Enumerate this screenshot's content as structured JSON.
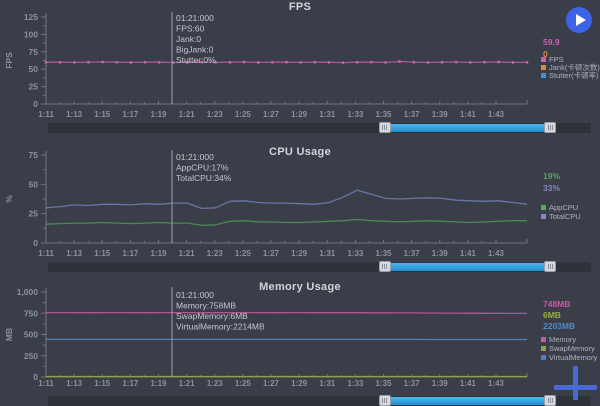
{
  "app": {
    "background": "#3a3e48",
    "axis_color": "#6e7480",
    "label_color": "#8b919d",
    "tooltip_color": "#c2c7cf",
    "legend_text_color": "#aeb3bd"
  },
  "buttons": {
    "play": {
      "icon": "play-icon",
      "color": "#3c63e8",
      "glyph_color": "#ffffff"
    },
    "add": {
      "icon": "plus-icon",
      "color": "#4b69d4"
    }
  },
  "chart_data": [
    {
      "type": "line",
      "title": "FPS",
      "ylabel": "FPS",
      "ylim": [
        0,
        125
      ],
      "ytick_values": [
        0,
        25,
        50,
        75,
        100,
        125
      ],
      "ytick_labels": [
        "0",
        "25",
        "50",
        "75",
        "100",
        "125"
      ],
      "xticks": [
        "1:11",
        "1:13",
        "1:15",
        "1:17",
        "1:19",
        "1:21",
        "1:23",
        "1:25",
        "1:27",
        "1:29",
        "1:31",
        "1:33",
        "1:35",
        "1:37",
        "1:39",
        "1:41",
        "1:43"
      ],
      "grid": false,
      "legend_position": "right",
      "cursor": {
        "fraction": 0.262,
        "lines": [
          "01:21:000",
          "FPS:60",
          "Jank:0",
          "BigJank:0",
          "Stutter:0%"
        ]
      },
      "current_values": [
        {
          "text": "59.9",
          "color": "#c564ae"
        },
        {
          "text": "0",
          "color": "#d9883f"
        }
      ],
      "legend": [
        {
          "label": "FPS",
          "color": "#c564ae"
        },
        {
          "label": "Jank(卡顿次数)",
          "color": "#d9883f"
        },
        {
          "label": "Stutter(卡顿率)",
          "color": "#4090d8"
        }
      ],
      "series": [
        {
          "name": "FPS",
          "color": "#a8579d",
          "marker": true,
          "marker_color": "#c564ae",
          "values": [
            60,
            60,
            59.8,
            60.2,
            60.5,
            60,
            59.7,
            60.1,
            60,
            59.6,
            60,
            60.2,
            59.8,
            60,
            60.3,
            59.7,
            60,
            60.1,
            59.8,
            60.2,
            60,
            59.5,
            60,
            60.2,
            59.8,
            61,
            60.2,
            59.6,
            60,
            60.3,
            59.8,
            60.1,
            60.4,
            59.7,
            59.9
          ]
        }
      ],
      "scrollbar": {
        "start": 0.62,
        "end": 0.925
      }
    },
    {
      "type": "line",
      "title": "CPU Usage",
      "ylabel": "%",
      "ylim": [
        0,
        75
      ],
      "ytick_values": [
        0,
        25,
        50,
        75
      ],
      "ytick_labels": [
        "0",
        "25",
        "50",
        "75"
      ],
      "xticks": [
        "1:11",
        "1:13",
        "1:15",
        "1:17",
        "1:19",
        "1:21",
        "1:23",
        "1:25",
        "1:27",
        "1:29",
        "1:31",
        "1:33",
        "1:35",
        "1:37",
        "1:39",
        "1:41",
        "1:43"
      ],
      "grid": false,
      "legend_position": "right",
      "cursor": {
        "fraction": 0.262,
        "lines": [
          "01:21:000",
          "AppCPU:17%",
          "TotalCPU:34%"
        ]
      },
      "current_values": [
        {
          "text": "19%",
          "color": "#56a863"
        },
        {
          "text": "33%",
          "color": "#8089c0"
        }
      ],
      "legend": [
        {
          "label": "AppCPU",
          "color": "#56a863"
        },
        {
          "label": "TotalCPU",
          "color": "#8089c0"
        }
      ],
      "series": [
        {
          "name": "TotalCPU",
          "color": "#6b74aa",
          "marker": false,
          "values": [
            30,
            31,
            32.5,
            32,
            33,
            33,
            32.5,
            33.5,
            33,
            34,
            34,
            29.5,
            30,
            35.5,
            36,
            34.5,
            34,
            34,
            33.5,
            33,
            34.5,
            39,
            45,
            41.5,
            38,
            37.5,
            38,
            38.5,
            38,
            36.5,
            36,
            35.5,
            36,
            34.5,
            33
          ]
        },
        {
          "name": "AppCPU",
          "color": "#4f8758",
          "marker": false,
          "values": [
            16,
            16.5,
            17,
            17,
            17.5,
            17,
            16.5,
            17,
            17.5,
            17,
            17,
            15,
            15.5,
            18.5,
            19,
            18,
            18,
            17.5,
            17.5,
            18,
            18.5,
            19,
            20,
            19,
            18.5,
            18,
            18.5,
            19,
            18.5,
            18,
            17.5,
            18,
            18.5,
            19,
            19
          ]
        }
      ],
      "scrollbar": {
        "start": 0.62,
        "end": 0.925
      }
    },
    {
      "type": "line",
      "title": "Memory Usage",
      "ylabel": "MB",
      "ylim": [
        0,
        1000
      ],
      "ytick_values": [
        0,
        250,
        500,
        750,
        1000
      ],
      "ytick_labels": [
        "0",
        "250",
        "500",
        "750",
        "1,000"
      ],
      "xticks": [
        "1:11",
        "1:13",
        "1:15",
        "1:17",
        "1:19",
        "1:21",
        "1:23",
        "1:25",
        "1:27",
        "1:29",
        "1:31",
        "1:33",
        "1:35",
        "1:37",
        "1:39",
        "1:41",
        "1:43"
      ],
      "grid": false,
      "legend_position": "right",
      "cursor": {
        "fraction": 0.262,
        "lines": [
          "01:21:000",
          "Memory:758MB",
          "SwapMemory:6MB",
          "VirtualMemory:2214MB"
        ]
      },
      "current_values": [
        {
          "text": "748MB",
          "color": "#c858a8"
        },
        {
          "text": "6MB",
          "color": "#9ab03c"
        },
        {
          "text": "2203MB",
          "color": "#5588cc"
        }
      ],
      "legend": [
        {
          "label": "Memory",
          "color": "#c858a8"
        },
        {
          "label": "SwapMemory",
          "color": "#8aa43e"
        },
        {
          "label": "VirtualMemory",
          "color": "#4a80c4"
        }
      ],
      "series": [
        {
          "name": "Memory",
          "color": "#b8509c",
          "marker": false,
          "values": [
            758,
            758,
            758,
            757,
            758,
            758,
            758,
            757,
            758,
            758,
            758,
            758,
            757,
            758,
            758,
            758,
            757,
            758,
            758,
            757,
            757,
            756,
            756,
            755,
            755,
            754,
            754,
            753,
            752,
            752,
            751,
            750,
            749,
            748,
            748
          ]
        },
        {
          "name": "VirtualMemory",
          "color": "#4a80c4",
          "marker": false,
          "render_scale": 0.2,
          "values": [
            2214,
            2214,
            2214,
            2213,
            2214,
            2214,
            2213,
            2214,
            2214,
            2214,
            2214,
            2213,
            2214,
            2214,
            2213,
            2214,
            2214,
            2213,
            2213,
            2212,
            2212,
            2211,
            2211,
            2210,
            2210,
            2209,
            2209,
            2208,
            2207,
            2206,
            2206,
            2205,
            2204,
            2203,
            2203
          ]
        },
        {
          "name": "SwapMemory",
          "color": "#8aa43e",
          "marker": false,
          "values": [
            6,
            6,
            6,
            6,
            6,
            6,
            6,
            6,
            6,
            6,
            6,
            6,
            6,
            6,
            6,
            6,
            6,
            6,
            6,
            6,
            6,
            6,
            6,
            6,
            6,
            6,
            6,
            6,
            6,
            6,
            6,
            6,
            6,
            6,
            6
          ]
        }
      ],
      "scrollbar": {
        "start": 0.62,
        "end": 0.925
      }
    }
  ]
}
